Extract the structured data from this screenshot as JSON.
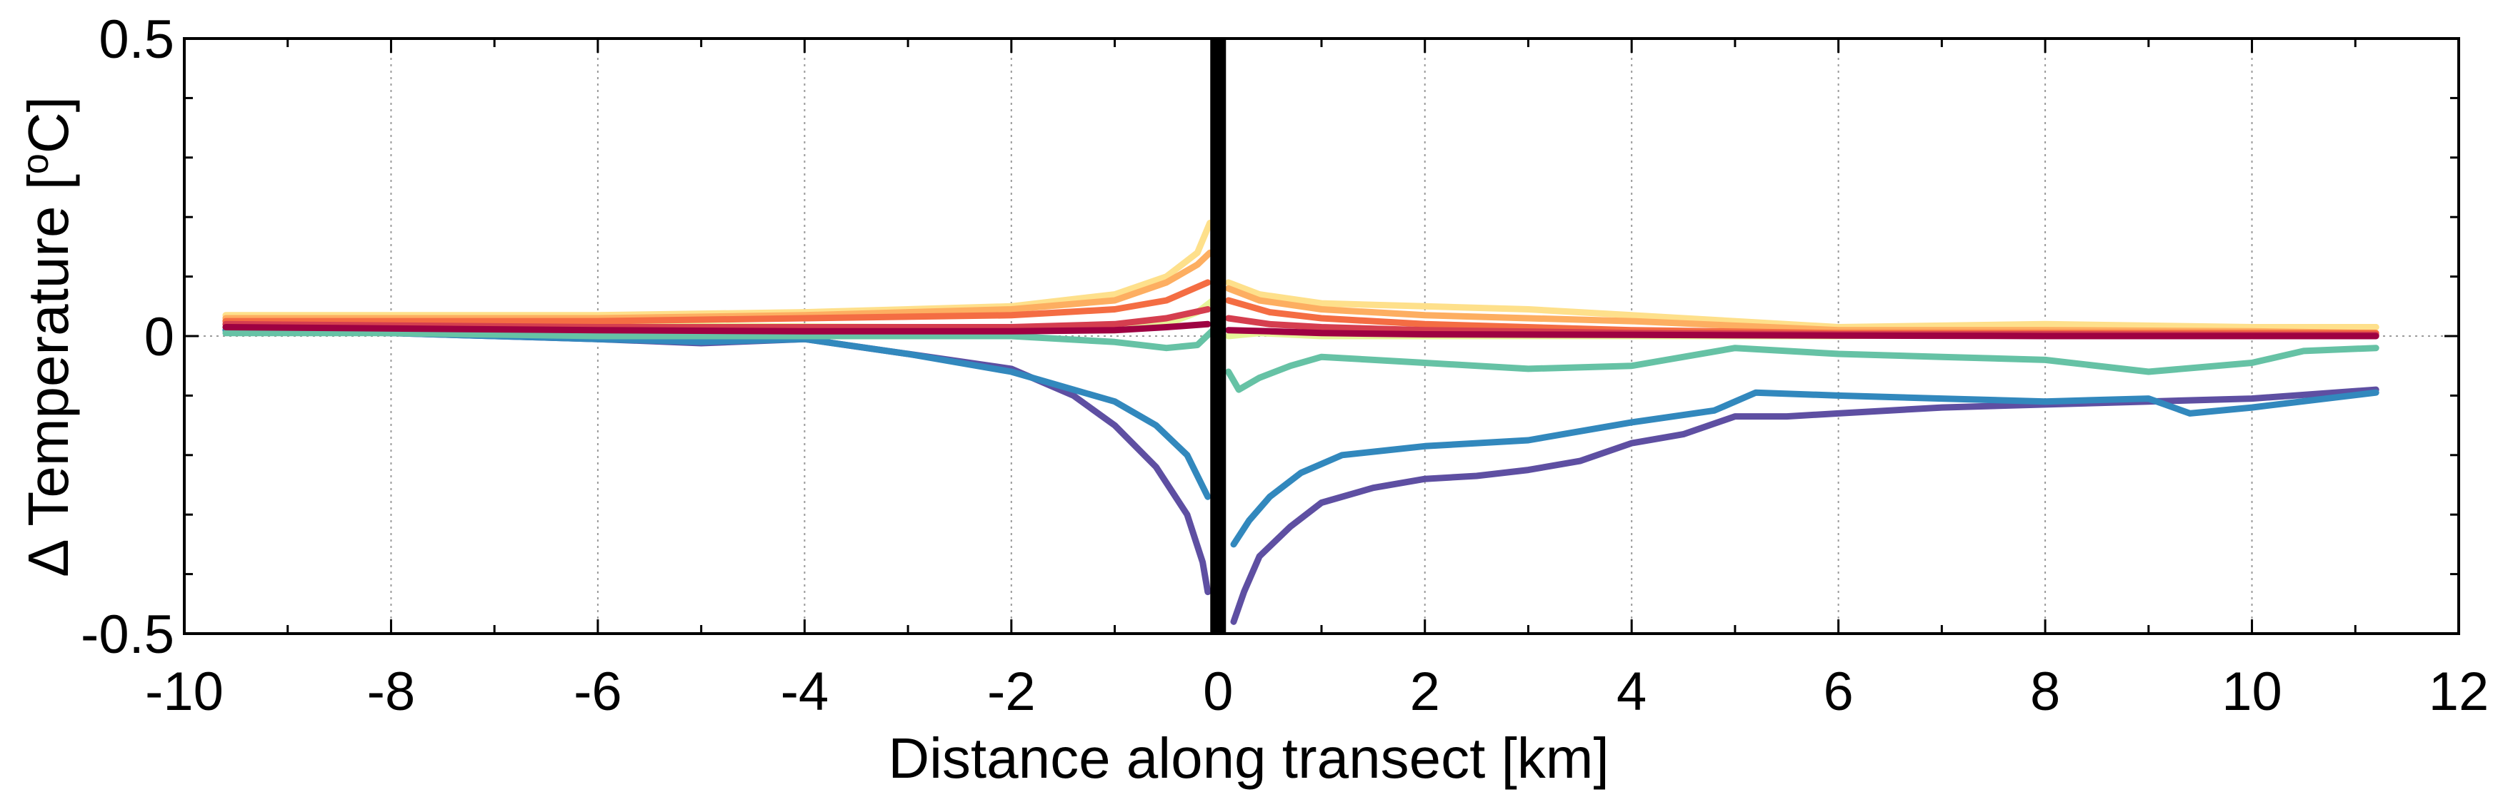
{
  "chart_data": {
    "type": "line",
    "title": "",
    "xlabel": "Distance along transect [km]",
    "ylabel": "Δ Temperature [°C]",
    "ylabel_parts": {
      "prefix": "Δ Temperature [",
      "superscript": "o",
      "suffix": "C]"
    },
    "xlim": [
      -10,
      12
    ],
    "ylim": [
      -0.5,
      0.5
    ],
    "x_ticks": [
      -10,
      -8,
      -6,
      -4,
      -2,
      0,
      2,
      4,
      6,
      8,
      10,
      12
    ],
    "x_tick_labels": [
      "-10",
      "-8",
      "-6",
      "-4",
      "-2",
      "0",
      "2",
      "4",
      "6",
      "8",
      "10",
      "12"
    ],
    "y_ticks": [
      -0.5,
      0,
      0.5
    ],
    "y_tick_labels": [
      "-0.5",
      "0",
      "0.5"
    ],
    "grid": "x dotted",
    "zero_line": {
      "y": 0,
      "style": "dotted"
    },
    "vertical_marker": {
      "x": 0,
      "color": "#000000",
      "style": "thick solid"
    },
    "series": [
      {
        "name": "series-purple",
        "color": "#5e4fa2",
        "segments": [
          {
            "x": [
              -9.6,
              -8,
              -6,
              -5,
              -4,
              -3,
              -2,
              -1.4,
              -1,
              -0.6,
              -0.3,
              -0.15,
              -0.1
            ],
            "y": [
              0.01,
              0.005,
              -0.005,
              -0.012,
              -0.005,
              -0.03,
              -0.055,
              -0.1,
              -0.15,
              -0.22,
              -0.3,
              -0.38,
              -0.43
            ]
          },
          {
            "x": [
              0.15,
              0.25,
              0.4,
              0.7,
              1.0,
              1.5,
              2.0,
              2.5,
              3.0,
              3.5,
              4.0,
              4.5,
              5.0,
              5.5,
              6,
              7,
              8,
              9,
              10,
              11.2
            ],
            "y": [
              -0.48,
              -0.43,
              -0.37,
              -0.32,
              -0.28,
              -0.255,
              -0.24,
              -0.235,
              -0.225,
              -0.21,
              -0.18,
              -0.165,
              -0.135,
              -0.135,
              -0.13,
              -0.12,
              -0.115,
              -0.11,
              -0.105,
              -0.09
            ]
          }
        ]
      },
      {
        "name": "series-blue",
        "color": "#3288bd",
        "segments": [
          {
            "x": [
              -9.6,
              -8,
              -6,
              -5,
              -4,
              -3,
              -2,
              -1.4,
              -1,
              -0.6,
              -0.3,
              -0.1
            ],
            "y": [
              0.01,
              0.005,
              -0.005,
              -0.01,
              -0.005,
              -0.03,
              -0.06,
              -0.09,
              -0.11,
              -0.15,
              -0.2,
              -0.27
            ]
          },
          {
            "x": [
              0.15,
              0.3,
              0.5,
              0.8,
              1.2,
              2,
              3,
              4,
              4.8,
              5.2,
              6,
              7,
              8,
              9,
              9.4,
              10,
              11.2
            ],
            "y": [
              -0.35,
              -0.31,
              -0.27,
              -0.23,
              -0.2,
              -0.185,
              -0.175,
              -0.145,
              -0.125,
              -0.095,
              -0.1,
              -0.105,
              -0.11,
              -0.105,
              -0.13,
              -0.12,
              -0.095
            ]
          }
        ]
      },
      {
        "name": "series-green",
        "color": "#66c2a5",
        "segments": [
          {
            "x": [
              -9.6,
              -8,
              -6,
              -4,
              -2,
              -1,
              -0.5,
              -0.2,
              -0.05
            ],
            "y": [
              0.005,
              0.005,
              0.0,
              0.0,
              0.0,
              -0.01,
              -0.02,
              -0.015,
              0.01
            ]
          },
          {
            "x": [
              0.1,
              0.2,
              0.4,
              0.7,
              1.0,
              2,
              3,
              4,
              5,
              6,
              7,
              8,
              9,
              10,
              10.5,
              11.2
            ],
            "y": [
              -0.06,
              -0.09,
              -0.07,
              -0.05,
              -0.035,
              -0.045,
              -0.055,
              -0.05,
              -0.02,
              -0.03,
              -0.035,
              -0.04,
              -0.06,
              -0.045,
              -0.025,
              -0.02
            ]
          }
        ]
      },
      {
        "name": "series-light-green",
        "color": "#e6f598",
        "segments": [
          {
            "x": [
              -9.6,
              -6,
              -3,
              -1,
              -0.5,
              -0.2,
              -0.05
            ],
            "y": [
              0.02,
              0.018,
              0.015,
              0.01,
              0.02,
              0.04,
              0.06
            ]
          },
          {
            "x": [
              0.1,
              0.4,
              1,
              3,
              6,
              8,
              9,
              10,
              11.2
            ],
            "y": [
              0.0,
              0.005,
              0.0,
              0.0,
              0.0,
              0.005,
              0.005,
              0.01,
              0.015
            ]
          }
        ]
      },
      {
        "name": "series-pale-yellow",
        "color": "#fee08b",
        "segments": [
          {
            "x": [
              -9.6,
              -6,
              -4,
              -2,
              -1,
              -0.5,
              -0.2,
              -0.08
            ],
            "y": [
              0.035,
              0.035,
              0.04,
              0.05,
              0.07,
              0.1,
              0.14,
              0.19
            ]
          },
          {
            "x": [
              0.1,
              0.4,
              1,
              2,
              3,
              4,
              6,
              8,
              10,
              11.2
            ],
            "y": [
              0.09,
              0.07,
              0.055,
              0.05,
              0.045,
              0.035,
              0.015,
              0.02,
              0.015,
              0.015
            ]
          }
        ]
      },
      {
        "name": "series-light-orange",
        "color": "#fdae61",
        "segments": [
          {
            "x": [
              -9.6,
              -6,
              -4,
              -2,
              -1,
              -0.5,
              -0.2,
              -0.08
            ],
            "y": [
              0.03,
              0.03,
              0.035,
              0.045,
              0.06,
              0.09,
              0.12,
              0.14
            ]
          },
          {
            "x": [
              0.1,
              0.4,
              1,
              2,
              3,
              4,
              6,
              8,
              10,
              11.2
            ],
            "y": [
              0.08,
              0.06,
              0.045,
              0.035,
              0.03,
              0.025,
              0.01,
              0.01,
              0.008,
              0.005
            ]
          }
        ]
      },
      {
        "name": "series-orange",
        "color": "#f46d43",
        "segments": [
          {
            "x": [
              -9.6,
              -6,
              -4,
              -2,
              -1,
              -0.5,
              -0.1
            ],
            "y": [
              0.025,
              0.025,
              0.03,
              0.035,
              0.045,
              0.06,
              0.09
            ]
          },
          {
            "x": [
              0.1,
              0.5,
              1,
              2,
              4,
              6,
              8,
              10,
              11.2
            ],
            "y": [
              0.06,
              0.04,
              0.03,
              0.02,
              0.01,
              0.005,
              0.005,
              0.005,
              0.005
            ]
          }
        ]
      },
      {
        "name": "series-red",
        "color": "#d53e4f",
        "segments": [
          {
            "x": [
              -9.6,
              -6,
              -4,
              -2,
              -1,
              -0.5,
              -0.1
            ],
            "y": [
              0.02,
              0.015,
              0.015,
              0.015,
              0.02,
              0.03,
              0.045
            ]
          },
          {
            "x": [
              0.1,
              0.5,
              1,
              2,
              4,
              6,
              8,
              10,
              11.2
            ],
            "y": [
              0.03,
              0.02,
              0.015,
              0.01,
              0.005,
              0.003,
              0.003,
              0.002,
              0.002
            ]
          }
        ]
      },
      {
        "name": "series-dark-red",
        "color": "#9e0142",
        "segments": [
          {
            "x": [
              -9.6,
              -6,
              -4,
              -2,
              -1,
              -0.5,
              -0.1
            ],
            "y": [
              0.015,
              0.01,
              0.008,
              0.008,
              0.01,
              0.015,
              0.02
            ]
          },
          {
            "x": [
              0.1,
              0.5,
              1,
              2,
              4,
              6,
              8,
              10,
              11.2
            ],
            "y": [
              0.01,
              0.008,
              0.005,
              0.003,
              0.002,
              0.001,
              0.0,
              0.0,
              0.0
            ]
          }
        ]
      }
    ]
  }
}
